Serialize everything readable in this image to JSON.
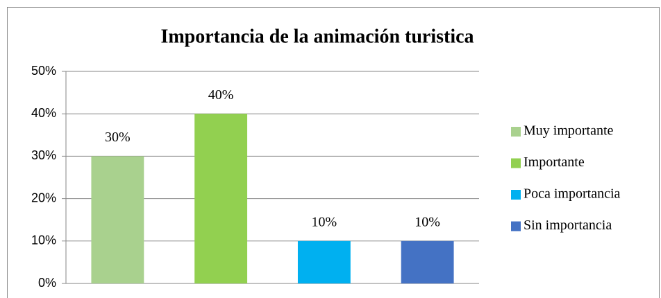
{
  "chart_data": {
    "type": "bar",
    "title": "Importancia de la animación turistica",
    "categories": [
      "Muy importante",
      "Importante",
      "Poca importancia",
      "Sin importancia"
    ],
    "values": [
      30,
      40,
      10,
      10
    ],
    "value_labels": [
      "30%",
      "40%",
      "10%",
      "10%"
    ],
    "colors": [
      "#a9d18e",
      "#92d050",
      "#00b0f0",
      "#4472c4"
    ],
    "ylim": [
      0,
      50
    ],
    "yticks": [
      {
        "value": 0,
        "label": "0%"
      },
      {
        "value": 10,
        "label": "10%"
      },
      {
        "value": 20,
        "label": "20%"
      },
      {
        "value": 30,
        "label": "30%"
      },
      {
        "value": 40,
        "label": "40%"
      },
      {
        "value": 50,
        "label": "50%"
      }
    ],
    "grid": true,
    "legend": "right"
  }
}
